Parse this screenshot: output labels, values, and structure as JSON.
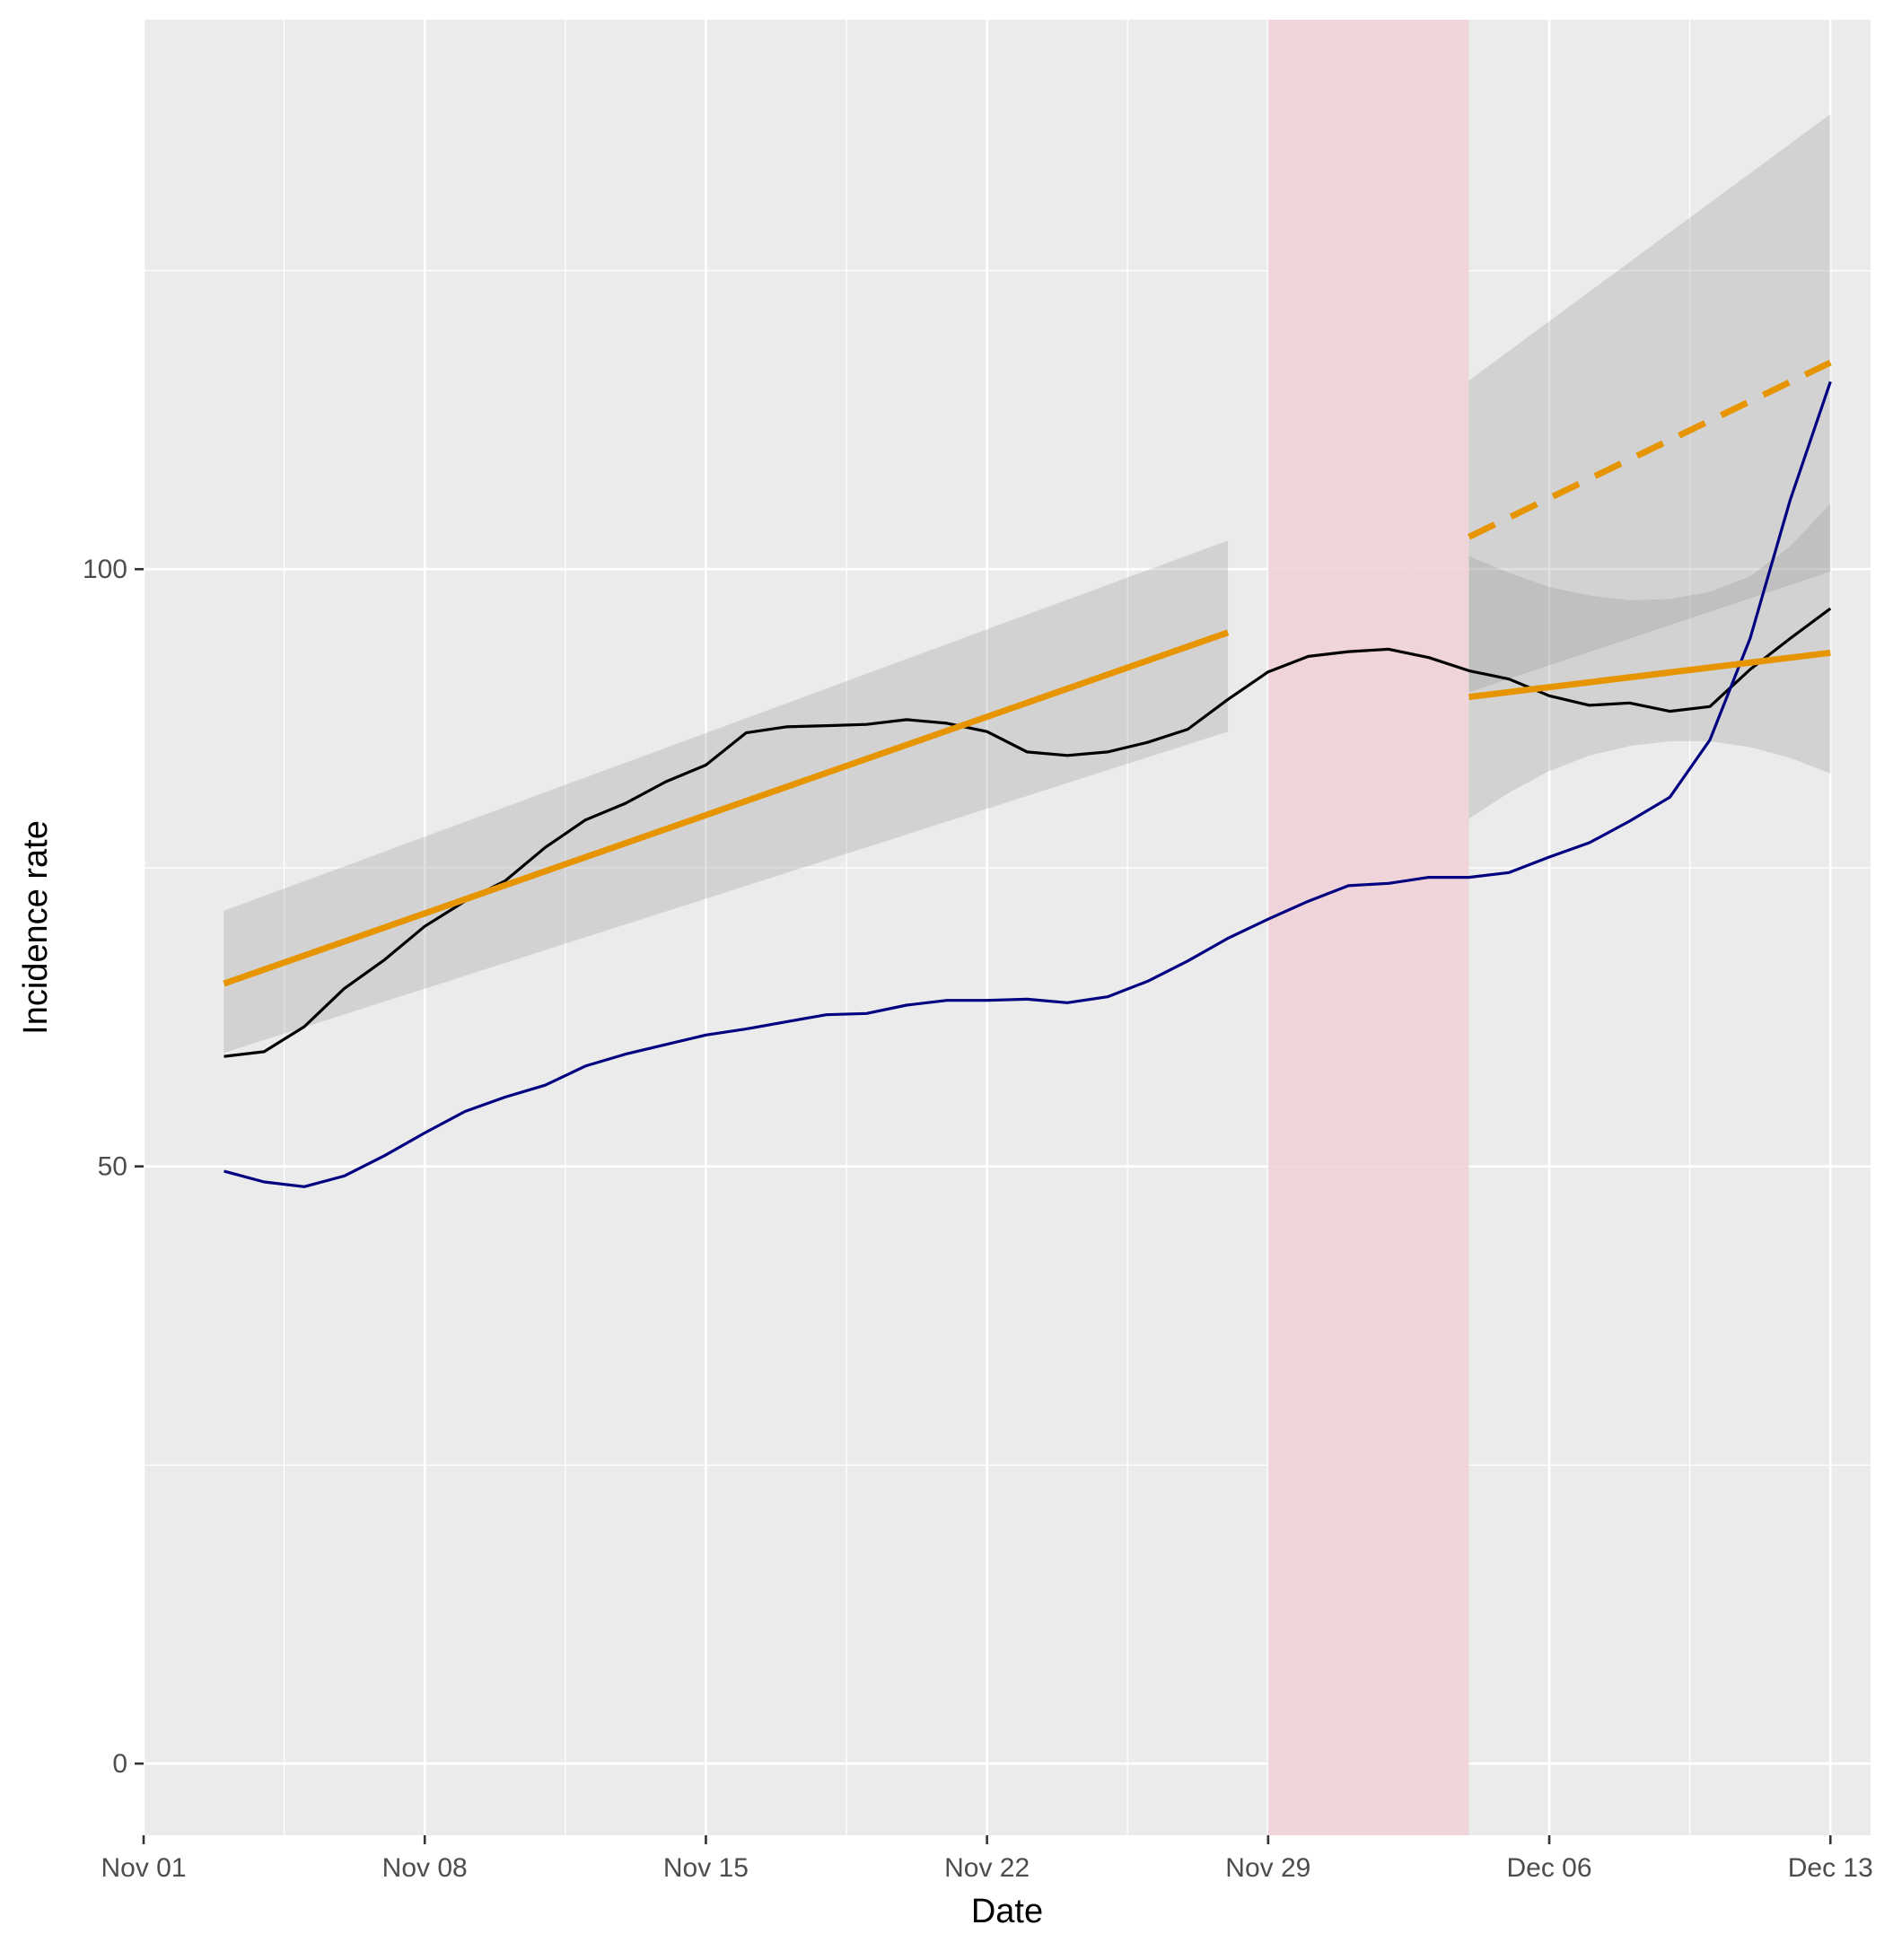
{
  "chart_data": {
    "type": "line",
    "xlabel": "Date",
    "ylabel": "Incidence rate",
    "x_axis": {
      "scale": "date",
      "range": [
        "2020-11-01",
        "2020-12-14"
      ],
      "ticks": [
        "2020-11-01",
        "2020-11-08",
        "2020-11-15",
        "2020-11-22",
        "2020-11-29",
        "2020-12-06",
        "2020-12-13"
      ],
      "tick_labels": [
        "Nov 01",
        "Nov 08",
        "Nov 15",
        "Nov 22",
        "Nov 29",
        "Dec 06",
        "Dec 13"
      ]
    },
    "y_axis": {
      "range": [
        -6,
        146
      ],
      "ticks": [
        0,
        50,
        100
      ],
      "tick_labels": [
        "0",
        "50",
        "100"
      ]
    },
    "grid": true,
    "legend": "none",
    "shaded_period": {
      "start": "2020-11-29",
      "end": "2020-12-04",
      "color": "#f0d0d6"
    },
    "series": [
      {
        "color": "#000000",
        "x": [
          "2020-11-03",
          "2020-11-04",
          "2020-11-05",
          "2020-11-06",
          "2020-11-07",
          "2020-11-08",
          "2020-11-09",
          "2020-11-10",
          "2020-11-11",
          "2020-11-12",
          "2020-11-13",
          "2020-11-14",
          "2020-11-15",
          "2020-11-16",
          "2020-11-17",
          "2020-11-18",
          "2020-11-19",
          "2020-11-20",
          "2020-11-21",
          "2020-11-22",
          "2020-11-23",
          "2020-11-24",
          "2020-11-25",
          "2020-11-26",
          "2020-11-27",
          "2020-11-28",
          "2020-11-29",
          "2020-11-30",
          "2020-12-01",
          "2020-12-02",
          "2020-12-03",
          "2020-12-04",
          "2020-12-05",
          "2020-12-06",
          "2020-12-07",
          "2020-12-08",
          "2020-12-09",
          "2020-12-10",
          "2020-12-11",
          "2020-12-12",
          "2020-12-13"
        ],
        "y": [
          59.2,
          59.6,
          61.7,
          64.9,
          67.3,
          70.1,
          72.2,
          73.9,
          76.7,
          79.0,
          80.4,
          82.2,
          83.6,
          86.3,
          86.8,
          86.9,
          87.0,
          87.4,
          87.1,
          86.4,
          84.7,
          84.4,
          84.7,
          85.5,
          86.6,
          89.1,
          91.4,
          92.7,
          93.1,
          93.3,
          92.6,
          91.5,
          90.8,
          89.4,
          88.6,
          88.8,
          88.1,
          88.5,
          91.6,
          94.2,
          96.7
        ]
      },
      {
        "color": "#000080",
        "x": [
          "2020-11-03",
          "2020-11-04",
          "2020-11-05",
          "2020-11-06",
          "2020-11-07",
          "2020-11-08",
          "2020-11-09",
          "2020-11-10",
          "2020-11-11",
          "2020-11-12",
          "2020-11-13",
          "2020-11-14",
          "2020-11-15",
          "2020-11-16",
          "2020-11-17",
          "2020-11-18",
          "2020-11-19",
          "2020-11-20",
          "2020-11-21",
          "2020-11-22",
          "2020-11-23",
          "2020-11-24",
          "2020-11-25",
          "2020-11-26",
          "2020-11-27",
          "2020-11-28",
          "2020-11-29",
          "2020-11-30",
          "2020-12-01",
          "2020-12-02",
          "2020-12-03",
          "2020-12-04",
          "2020-12-05",
          "2020-12-06",
          "2020-12-07",
          "2020-12-08",
          "2020-12-09",
          "2020-12-10",
          "2020-12-11",
          "2020-12-12",
          "2020-12-13"
        ],
        "y": [
          49.6,
          48.7,
          48.3,
          49.2,
          50.9,
          52.8,
          54.6,
          55.8,
          56.8,
          58.4,
          59.4,
          60.2,
          61.0,
          61.5,
          62.1,
          62.7,
          62.8,
          63.5,
          63.9,
          63.9,
          64.0,
          63.7,
          64.2,
          65.5,
          67.2,
          69.1,
          70.7,
          72.2,
          73.5,
          73.7,
          74.2,
          74.2,
          74.6,
          75.9,
          77.1,
          78.9,
          80.9,
          85.7,
          94.2,
          105.8,
          115.7
        ]
      }
    ],
    "trend_lines": [
      {
        "color": "#e69500",
        "style": "solid",
        "x": [
          "2020-11-03",
          "2020-11-28"
        ],
        "y": [
          65.3,
          94.7
        ],
        "ci_lower": [
          59.5,
          86.4
        ],
        "ci_upper": [
          71.4,
          102.4
        ]
      },
      {
        "color": "#e69500",
        "style": "dashed",
        "x": [
          "2020-12-04",
          "2020-12-13"
        ],
        "y": [
          102.7,
          117.3
        ],
        "ci_lower": [
          89.7,
          99.8
        ],
        "ci_upper": [
          115.8,
          138.1
        ],
        "ci_x": [
          "2020-12-04",
          "2020-12-05",
          "2020-12-06",
          "2020-12-07",
          "2020-12-08",
          "2020-12-09",
          "2020-12-10",
          "2020-12-11",
          "2020-12-12",
          "2020-12-13"
        ]
      },
      {
        "color": "#e69500",
        "style": "solid",
        "x": [
          "2020-12-04",
          "2020-12-13"
        ],
        "y": [
          89.3,
          93.0
        ],
        "ci_lower": [
          79.1,
          82.9
        ],
        "ci_upper": [
          101.1,
          105.5
        ],
        "ci_x": [
          "2020-12-04",
          "2020-12-05",
          "2020-12-06",
          "2020-12-07",
          "2020-12-08",
          "2020-12-09",
          "2020-12-10",
          "2020-12-11",
          "2020-12-12",
          "2020-12-13"
        ],
        "ci_lower_curve": [
          79.1,
          81.3,
          83.1,
          84.4,
          85.2,
          85.6,
          85.6,
          85.1,
          84.2,
          82.9
        ],
        "ci_upper_curve": [
          101.1,
          99.7,
          98.5,
          97.8,
          97.4,
          97.5,
          98.1,
          99.4,
          101.9,
          105.5
        ]
      }
    ]
  }
}
